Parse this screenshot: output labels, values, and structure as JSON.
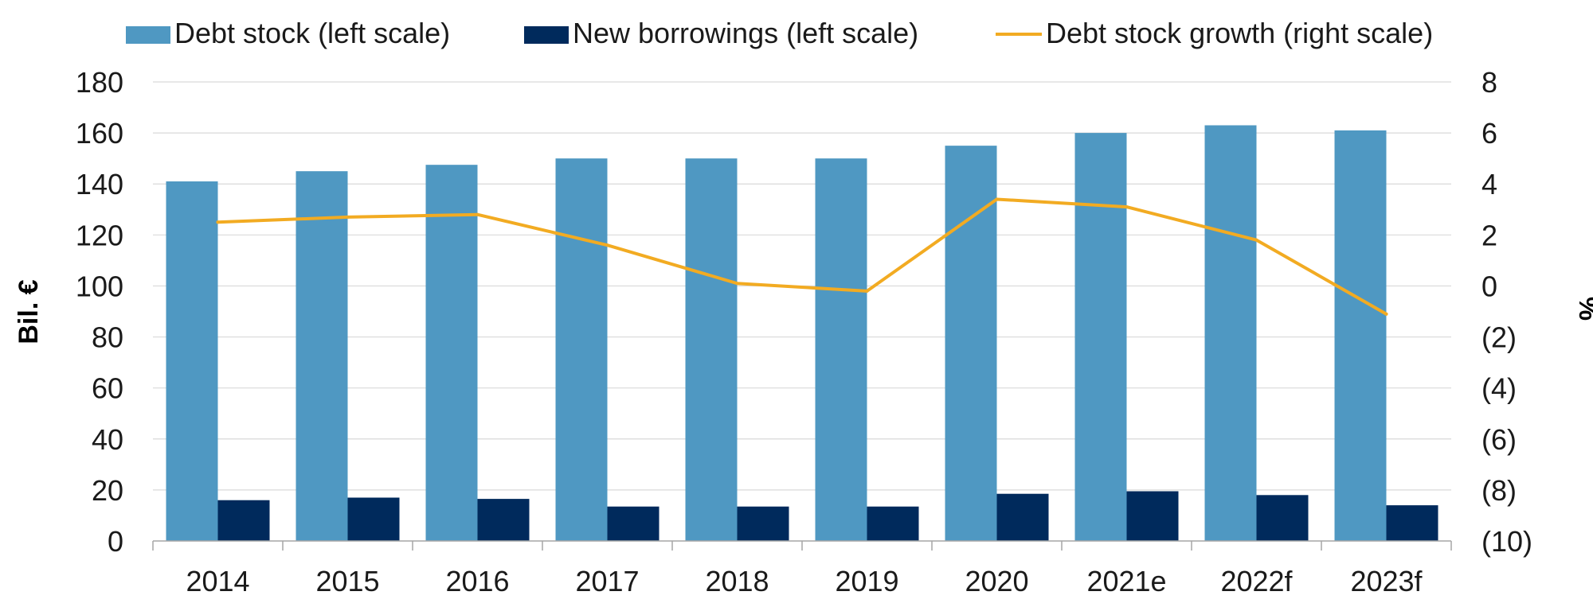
{
  "chart_data": {
    "type": "bar",
    "categories": [
      "2014",
      "2015",
      "2016",
      "2017",
      "2018",
      "2019",
      "2020",
      "2021e",
      "2022f",
      "2023f"
    ],
    "series": [
      {
        "name": "Debt stock (left scale)",
        "kind": "bar",
        "axis": "left",
        "color": "#4F98C2",
        "values": [
          141,
          145,
          147.5,
          150,
          150,
          150,
          155,
          160,
          163,
          161
        ]
      },
      {
        "name": "New borrowings (left scale)",
        "kind": "bar",
        "axis": "left",
        "color": "#002A5C",
        "values": [
          16,
          17,
          16.5,
          13.5,
          13.5,
          13.5,
          18.5,
          19.5,
          18,
          14
        ]
      },
      {
        "name": "Debt stock growth (right scale)",
        "kind": "line",
        "axis": "right",
        "color": "#F2AB22",
        "values": [
          2.5,
          2.7,
          2.8,
          1.6,
          0.1,
          -0.2,
          3.4,
          3.1,
          1.8,
          -1.1
        ]
      }
    ],
    "ylabel": "Bil. €",
    "y2label": "%",
    "ylim": [
      0,
      180
    ],
    "y2lim": [
      -10,
      8
    ],
    "yticks": [
      "0",
      "20",
      "40",
      "60",
      "80",
      "100",
      "120",
      "140",
      "160",
      "180"
    ],
    "y2ticks": [
      "(10)",
      "(8)",
      "(6)",
      "(4)",
      "(2)",
      "0",
      "2",
      "4",
      "6",
      "8"
    ],
    "grid": true,
    "legend_position": "top"
  }
}
